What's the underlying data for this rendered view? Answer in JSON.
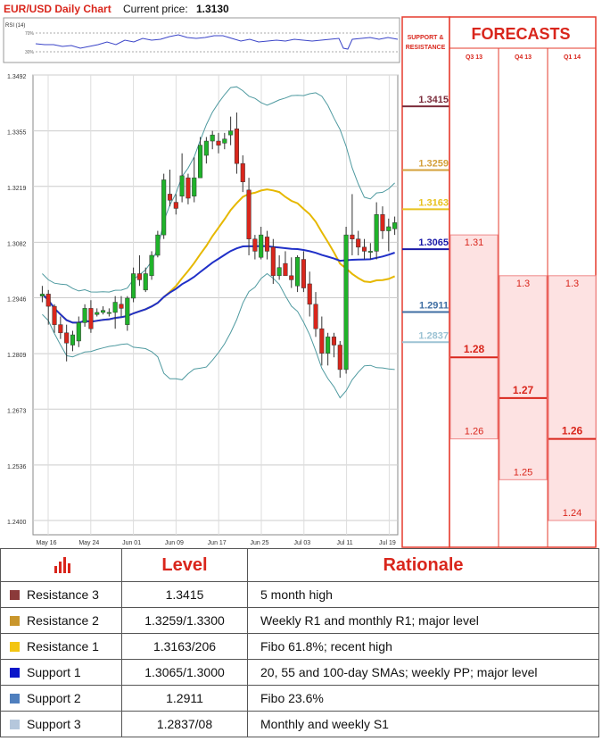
{
  "header": {
    "title": "EUR/USD Daily Chart",
    "price_label": "Current price:",
    "price_value": "1.3130"
  },
  "rsi": {
    "label": "RSI (14)",
    "upper": "70%",
    "lower": "30%"
  },
  "chart_data": {
    "type": "candlestick",
    "title": "EUR/USD Daily Chart",
    "y_ticks": [
      "1.3492",
      "1.3355",
      "1.3219",
      "1.3082",
      "1.2946",
      "1.2809",
      "1.2673",
      "1.2536",
      "1.2400"
    ],
    "ylim": [
      1.24,
      1.3492
    ],
    "x_ticks": [
      "May 16",
      "May 24",
      "Jun 01",
      "Jun 09",
      "Jun 17",
      "Jun 25",
      "Jul 03",
      "Jul 11",
      "Jul 19"
    ],
    "candles": [
      {
        "o": 1.295,
        "h": 1.2975,
        "l": 1.2935,
        "c": 1.2955
      },
      {
        "o": 1.2955,
        "h": 1.2965,
        "l": 1.288,
        "c": 1.2925
      },
      {
        "o": 1.2925,
        "h": 1.293,
        "l": 1.286,
        "c": 1.288
      },
      {
        "o": 1.288,
        "h": 1.29,
        "l": 1.2845,
        "c": 1.286
      },
      {
        "o": 1.286,
        "h": 1.288,
        "l": 1.279,
        "c": 1.2835
      },
      {
        "o": 1.283,
        "h": 1.2865,
        "l": 1.2815,
        "c": 1.2855
      },
      {
        "o": 1.284,
        "h": 1.29,
        "l": 1.2825,
        "c": 1.2885
      },
      {
        "o": 1.2885,
        "h": 1.293,
        "l": 1.2875,
        "c": 1.292
      },
      {
        "o": 1.292,
        "h": 1.294,
        "l": 1.286,
        "c": 1.287
      },
      {
        "o": 1.2905,
        "h": 1.292,
        "l": 1.29,
        "c": 1.291
      },
      {
        "o": 1.291,
        "h": 1.2925,
        "l": 1.2905,
        "c": 1.2915
      },
      {
        "o": 1.291,
        "h": 1.292,
        "l": 1.29,
        "c": 1.291
      },
      {
        "o": 1.291,
        "h": 1.295,
        "l": 1.287,
        "c": 1.2935
      },
      {
        "o": 1.293,
        "h": 1.295,
        "l": 1.29,
        "c": 1.292
      },
      {
        "o": 1.288,
        "h": 1.295,
        "l": 1.2865,
        "c": 1.2945
      },
      {
        "o": 1.2945,
        "h": 1.302,
        "l": 1.2935,
        "c": 1.3005
      },
      {
        "o": 1.3005,
        "h": 1.305,
        "l": 1.2975,
        "c": 1.299
      },
      {
        "o": 1.2965,
        "h": 1.302,
        "l": 1.296,
        "c": 1.3005
      },
      {
        "o": 1.3,
        "h": 1.306,
        "l": 1.299,
        "c": 1.305
      },
      {
        "o": 1.305,
        "h": 1.311,
        "l": 1.3045,
        "c": 1.31
      },
      {
        "o": 1.31,
        "h": 1.325,
        "l": 1.309,
        "c": 1.3235
      },
      {
        "o": 1.32,
        "h": 1.326,
        "l": 1.317,
        "c": 1.3185
      },
      {
        "o": 1.318,
        "h": 1.32,
        "l": 1.315,
        "c": 1.3165
      },
      {
        "o": 1.3195,
        "h": 1.33,
        "l": 1.318,
        "c": 1.3245
      },
      {
        "o": 1.324,
        "h": 1.325,
        "l": 1.3175,
        "c": 1.319
      },
      {
        "o": 1.3195,
        "h": 1.329,
        "l": 1.318,
        "c": 1.324
      },
      {
        "o": 1.324,
        "h": 1.334,
        "l": 1.324,
        "c": 1.332
      },
      {
        "o": 1.3295,
        "h": 1.334,
        "l": 1.3275,
        "c": 1.333
      },
      {
        "o": 1.333,
        "h": 1.3355,
        "l": 1.331,
        "c": 1.3345
      },
      {
        "o": 1.333,
        "h": 1.335,
        "l": 1.33,
        "c": 1.332
      },
      {
        "o": 1.3325,
        "h": 1.335,
        "l": 1.331,
        "c": 1.3335
      },
      {
        "o": 1.3345,
        "h": 1.339,
        "l": 1.332,
        "c": 1.3355
      },
      {
        "o": 1.336,
        "h": 1.34,
        "l": 1.325,
        "c": 1.3275
      },
      {
        "o": 1.3275,
        "h": 1.3295,
        "l": 1.3205,
        "c": 1.323
      },
      {
        "o": 1.321,
        "h": 1.324,
        "l": 1.305,
        "c": 1.309
      },
      {
        "o": 1.309,
        "h": 1.31,
        "l": 1.304,
        "c": 1.306
      },
      {
        "o": 1.3045,
        "h": 1.312,
        "l": 1.304,
        "c": 1.31
      },
      {
        "o": 1.3095,
        "h": 1.311,
        "l": 1.304,
        "c": 1.306
      },
      {
        "o": 1.307,
        "h": 1.309,
        "l": 1.298,
        "c": 1.3
      },
      {
        "o": 1.3,
        "h": 1.305,
        "l": 1.299,
        "c": 1.302
      },
      {
        "o": 1.303,
        "h": 1.306,
        "l": 1.3,
        "c": 1.3
      },
      {
        "o": 1.3,
        "h": 1.3045,
        "l": 1.297,
        "c": 1.299
      },
      {
        "o": 1.2975,
        "h": 1.305,
        "l": 1.296,
        "c": 1.3045
      },
      {
        "o": 1.304,
        "h": 1.306,
        "l": 1.296,
        "c": 1.297
      },
      {
        "o": 1.298,
        "h": 1.301,
        "l": 1.29,
        "c": 1.293
      },
      {
        "o": 1.293,
        "h": 1.296,
        "l": 1.285,
        "c": 1.287
      },
      {
        "o": 1.287,
        "h": 1.29,
        "l": 1.278,
        "c": 1.281
      },
      {
        "o": 1.281,
        "h": 1.286,
        "l": 1.278,
        "c": 1.285
      },
      {
        "o": 1.285,
        "h": 1.286,
        "l": 1.28,
        "c": 1.283
      },
      {
        "o": 1.283,
        "h": 1.284,
        "l": 1.275,
        "c": 1.277
      },
      {
        "o": 1.277,
        "h": 1.312,
        "l": 1.276,
        "c": 1.31
      },
      {
        "o": 1.31,
        "h": 1.32,
        "l": 1.305,
        "c": 1.309
      },
      {
        "o": 1.309,
        "h": 1.311,
        "l": 1.305,
        "c": 1.307
      },
      {
        "o": 1.307,
        "h": 1.309,
        "l": 1.304,
        "c": 1.306
      },
      {
        "o": 1.306,
        "h": 1.308,
        "l": 1.304,
        "c": 1.306
      },
      {
        "o": 1.306,
        "h": 1.318,
        "l": 1.304,
        "c": 1.315
      },
      {
        "o": 1.315,
        "h": 1.317,
        "l": 1.309,
        "c": 1.311
      },
      {
        "o": 1.311,
        "h": 1.314,
        "l": 1.306,
        "c": 1.312
      },
      {
        "o": 1.3115,
        "h": 1.3145,
        "l": 1.31,
        "c": 1.313
      }
    ]
  },
  "sr_panel": {
    "title": "SUPPORT & RESISTANCE",
    "levels": [
      {
        "label": "1.3415",
        "value": 1.3415,
        "color": "#7b2b3a"
      },
      {
        "label": "1.3259",
        "value": 1.3259,
        "color": "#d4a03a"
      },
      {
        "label": "1.3163",
        "value": 1.3163,
        "color": "#e8c21e"
      },
      {
        "label": "1.3065",
        "value": 1.3065,
        "color": "#1a1aa8"
      },
      {
        "label": "1.2911",
        "value": 1.2911,
        "color": "#3f6ea3"
      },
      {
        "label": "1.2837",
        "value": 1.2837,
        "color": "#9cc3d4"
      }
    ]
  },
  "forecasts": {
    "title": "FORECASTS",
    "columns": [
      {
        "label": "Q3 13",
        "high": "1.31",
        "high_v": 1.31,
        "mid": "1.28",
        "mid_v": 1.28,
        "low": "1.26",
        "low_v": 1.26
      },
      {
        "label": "Q4 13",
        "high": "1.3",
        "high_v": 1.3,
        "mid": "1.27",
        "mid_v": 1.27,
        "low": "1.25",
        "low_v": 1.25
      },
      {
        "label": "Q1 14",
        "high": "1.3",
        "high_v": 1.3,
        "mid": "1.26",
        "mid_v": 1.26,
        "low": "1.24",
        "low_v": 1.24
      }
    ]
  },
  "table": {
    "headers": {
      "level": "Level",
      "rationale": "Rationale"
    },
    "icon": "bar-chart-icon",
    "rows": [
      {
        "name": "Resistance 3",
        "color": "#8b3a3a",
        "level": "1.3415",
        "rationale": "5 month high"
      },
      {
        "name": "Resistance 2",
        "color": "#c9962c",
        "level": "1.3259/1.3300",
        "rationale": "Weekly R1 and monthly R1; major level"
      },
      {
        "name": "Resistance 1",
        "color": "#f3c512",
        "level": "1.3163/206",
        "rationale": "Fibo 61.8%; recent high"
      },
      {
        "name": "Support 1",
        "color": "#0b16c9",
        "level": "1.3065/1.3000",
        "rationale": "20, 55 and 100-day SMAs; weekly PP; major level"
      },
      {
        "name": "Support 2",
        "color": "#4f7fbe",
        "level": "1.2911",
        "rationale": "Fibo 23.6%"
      },
      {
        "name": "Support 3",
        "color": "#b5c7dc",
        "level": "1.2837/08",
        "rationale": "Monthly and weekly S1"
      }
    ]
  }
}
